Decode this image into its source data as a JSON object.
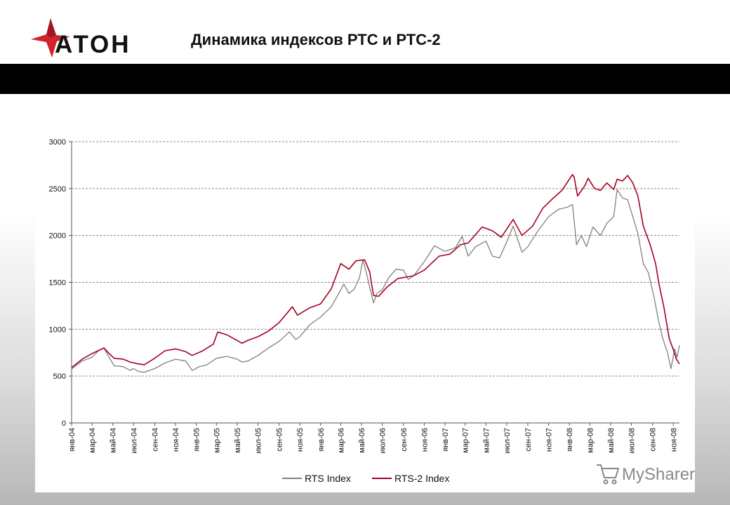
{
  "header": {
    "logo_text": "АТОН",
    "title": "Динамика индексов РТС и РТС-2"
  },
  "watermark": {
    "text": "MySharer"
  },
  "colors": {
    "rts": "#808080",
    "rts2": "#a50021",
    "logo_red": "#d2232a",
    "header_bar": "#000000"
  },
  "chart_data": {
    "type": "line",
    "title": "",
    "xlabel": "",
    "ylabel": "",
    "ylim": [
      0,
      3000
    ],
    "yticks": [
      "0",
      "500",
      "1000",
      "1500",
      "2000",
      "2500",
      "3000"
    ],
    "categories": [
      "янв-04",
      "мар-04",
      "май-04",
      "июл-04",
      "сен-04",
      "ноя-04",
      "янв-05",
      "мар-05",
      "май-05",
      "июл-05",
      "сен-05",
      "ноя-05",
      "янв-06",
      "мар-06",
      "май-06",
      "июл-06",
      "сен-06",
      "ноя-06",
      "янв-07",
      "мар-07",
      "май-07",
      "июл-07",
      "сен-07",
      "ноя-07",
      "янв-08",
      "мар-08",
      "май-08",
      "июл-08",
      "сен-08",
      "ноя-08"
    ],
    "grid": true,
    "legend_position": "bottom",
    "series": [
      {
        "name": "RTS Index",
        "color": "#808080",
        "points": [
          [
            "2004-01-01",
            575
          ],
          [
            "2004-02-01",
            660
          ],
          [
            "2004-03-01",
            700
          ],
          [
            "2004-03-20",
            770
          ],
          [
            "2004-04-05",
            800
          ],
          [
            "2004-04-20",
            700
          ],
          [
            "2004-05-05",
            610
          ],
          [
            "2004-06-01",
            600
          ],
          [
            "2004-06-20",
            560
          ],
          [
            "2004-07-01",
            580
          ],
          [
            "2004-07-15",
            550
          ],
          [
            "2004-08-01",
            540
          ],
          [
            "2004-09-01",
            580
          ],
          [
            "2004-10-01",
            640
          ],
          [
            "2004-11-01",
            680
          ],
          [
            "2004-12-01",
            660
          ],
          [
            "2004-12-20",
            560
          ],
          [
            "2005-01-10",
            600
          ],
          [
            "2005-02-01",
            620
          ],
          [
            "2005-03-01",
            690
          ],
          [
            "2005-04-01",
            710
          ],
          [
            "2005-05-01",
            680
          ],
          [
            "2005-05-15",
            650
          ],
          [
            "2005-06-01",
            660
          ],
          [
            "2005-07-01",
            720
          ],
          [
            "2005-08-01",
            800
          ],
          [
            "2005-09-01",
            870
          ],
          [
            "2005-10-01",
            970
          ],
          [
            "2005-10-20",
            890
          ],
          [
            "2005-11-01",
            920
          ],
          [
            "2005-12-01",
            1050
          ],
          [
            "2006-01-01",
            1130
          ],
          [
            "2006-02-01",
            1240
          ],
          [
            "2006-02-20",
            1360
          ],
          [
            "2006-03-10",
            1480
          ],
          [
            "2006-03-25",
            1380
          ],
          [
            "2006-04-10",
            1430
          ],
          [
            "2006-04-25",
            1550
          ],
          [
            "2006-05-05",
            1740
          ],
          [
            "2006-05-15",
            1600
          ],
          [
            "2006-05-25",
            1450
          ],
          [
            "2006-06-05",
            1280
          ],
          [
            "2006-06-15",
            1380
          ],
          [
            "2006-07-01",
            1420
          ],
          [
            "2006-07-20",
            1550
          ],
          [
            "2006-08-10",
            1640
          ],
          [
            "2006-09-01",
            1630
          ],
          [
            "2006-09-15",
            1530
          ],
          [
            "2006-10-01",
            1570
          ],
          [
            "2006-11-01",
            1720
          ],
          [
            "2006-12-01",
            1890
          ],
          [
            "2007-01-01",
            1830
          ],
          [
            "2007-02-01",
            1870
          ],
          [
            "2007-02-20",
            1990
          ],
          [
            "2007-03-10",
            1780
          ],
          [
            "2007-04-01",
            1880
          ],
          [
            "2007-05-01",
            1940
          ],
          [
            "2007-05-20",
            1780
          ],
          [
            "2007-06-10",
            1760
          ],
          [
            "2007-07-01",
            1930
          ],
          [
            "2007-07-20",
            2100
          ],
          [
            "2007-08-15",
            1820
          ],
          [
            "2007-09-01",
            1880
          ],
          [
            "2007-10-01",
            2050
          ],
          [
            "2007-11-01",
            2200
          ],
          [
            "2007-12-01",
            2280
          ],
          [
            "2007-12-25",
            2300
          ],
          [
            "2008-01-10",
            2330
          ],
          [
            "2008-01-22",
            1900
          ],
          [
            "2008-02-05",
            2000
          ],
          [
            "2008-02-20",
            1880
          ],
          [
            "2008-03-10",
            2090
          ],
          [
            "2008-04-01",
            2000
          ],
          [
            "2008-04-20",
            2130
          ],
          [
            "2008-05-10",
            2200
          ],
          [
            "2008-05-20",
            2490
          ],
          [
            "2008-06-05",
            2400
          ],
          [
            "2008-06-20",
            2380
          ],
          [
            "2008-07-05",
            2200
          ],
          [
            "2008-07-20",
            2020
          ],
          [
            "2008-08-05",
            1700
          ],
          [
            "2008-08-20",
            1600
          ],
          [
            "2008-09-05",
            1350
          ],
          [
            "2008-09-18",
            1100
          ],
          [
            "2008-10-01",
            900
          ],
          [
            "2008-10-15",
            750
          ],
          [
            "2008-10-25",
            580
          ],
          [
            "2008-11-05",
            790
          ],
          [
            "2008-11-12",
            700
          ],
          [
            "2008-11-19",
            830
          ]
        ]
      },
      {
        "name": "RTS-2 Index",
        "color": "#a50021",
        "points": [
          [
            "2004-01-01",
            590
          ],
          [
            "2004-02-01",
            680
          ],
          [
            "2004-03-01",
            740
          ],
          [
            "2004-04-05",
            800
          ],
          [
            "2004-04-20",
            740
          ],
          [
            "2004-05-05",
            690
          ],
          [
            "2004-06-01",
            680
          ],
          [
            "2004-06-20",
            650
          ],
          [
            "2004-07-15",
            630
          ],
          [
            "2004-08-01",
            620
          ],
          [
            "2004-09-01",
            690
          ],
          [
            "2004-10-01",
            770
          ],
          [
            "2004-11-01",
            790
          ],
          [
            "2004-12-01",
            760
          ],
          [
            "2004-12-20",
            720
          ],
          [
            "2005-01-20",
            770
          ],
          [
            "2005-02-20",
            840
          ],
          [
            "2005-03-05",
            970
          ],
          [
            "2005-04-01",
            940
          ],
          [
            "2005-05-01",
            880
          ],
          [
            "2005-05-15",
            850
          ],
          [
            "2005-06-01",
            880
          ],
          [
            "2005-07-01",
            920
          ],
          [
            "2005-08-01",
            980
          ],
          [
            "2005-09-01",
            1070
          ],
          [
            "2005-10-10",
            1240
          ],
          [
            "2005-10-25",
            1150
          ],
          [
            "2005-12-01",
            1230
          ],
          [
            "2006-01-01",
            1270
          ],
          [
            "2006-02-01",
            1430
          ],
          [
            "2006-03-01",
            1700
          ],
          [
            "2006-03-25",
            1640
          ],
          [
            "2006-04-15",
            1730
          ],
          [
            "2006-05-10",
            1740
          ],
          [
            "2006-05-25",
            1610
          ],
          [
            "2006-06-05",
            1360
          ],
          [
            "2006-06-20",
            1350
          ],
          [
            "2006-07-15",
            1450
          ],
          [
            "2006-08-15",
            1540
          ],
          [
            "2006-10-01",
            1570
          ],
          [
            "2006-11-01",
            1630
          ],
          [
            "2006-12-15",
            1780
          ],
          [
            "2007-01-15",
            1800
          ],
          [
            "2007-02-15",
            1900
          ],
          [
            "2007-03-10",
            1920
          ],
          [
            "2007-04-20",
            2090
          ],
          [
            "2007-05-20",
            2050
          ],
          [
            "2007-06-15",
            1980
          ],
          [
            "2007-07-20",
            2170
          ],
          [
            "2007-08-15",
            2000
          ],
          [
            "2007-09-15",
            2100
          ],
          [
            "2007-10-15",
            2290
          ],
          [
            "2007-11-15",
            2400
          ],
          [
            "2007-12-10",
            2480
          ],
          [
            "2008-01-10",
            2650
          ],
          [
            "2008-01-15",
            2620
          ],
          [
            "2008-01-25",
            2420
          ],
          [
            "2008-02-15",
            2530
          ],
          [
            "2008-02-25",
            2610
          ],
          [
            "2008-03-15",
            2500
          ],
          [
            "2008-04-01",
            2480
          ],
          [
            "2008-04-20",
            2560
          ],
          [
            "2008-05-10",
            2490
          ],
          [
            "2008-05-20",
            2600
          ],
          [
            "2008-06-05",
            2580
          ],
          [
            "2008-06-20",
            2640
          ],
          [
            "2008-07-05",
            2560
          ],
          [
            "2008-07-20",
            2420
          ],
          [
            "2008-08-05",
            2100
          ],
          [
            "2008-08-25",
            1900
          ],
          [
            "2008-09-10",
            1700
          ],
          [
            "2008-09-20",
            1480
          ],
          [
            "2008-10-05",
            1220
          ],
          [
            "2008-10-20",
            900
          ],
          [
            "2008-11-01",
            780
          ],
          [
            "2008-11-10",
            680
          ],
          [
            "2008-11-19",
            630
          ]
        ]
      }
    ]
  }
}
